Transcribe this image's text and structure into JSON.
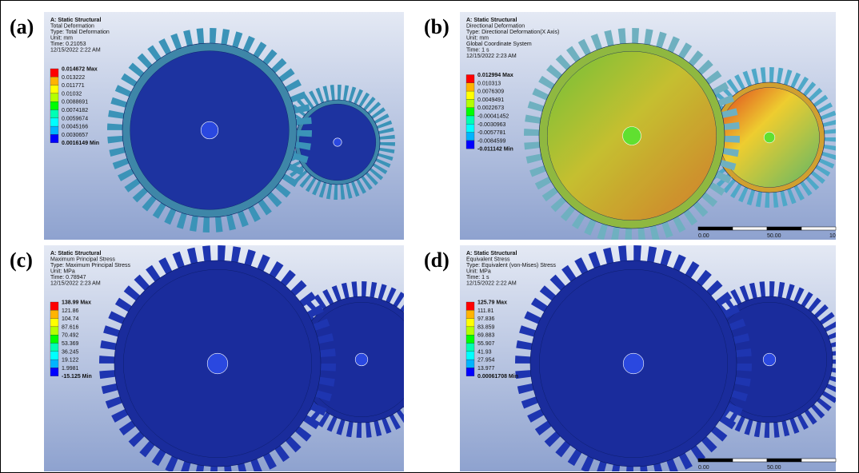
{
  "panels": [
    {
      "label": "(a)",
      "header": [
        "A: Static Structural",
        "Total Deformation",
        "Type: Total Deformation",
        "Unit: mm",
        "Time: 0.21053",
        "12/15/2022 2:22 AM"
      ],
      "legend": [
        "0.014672 Max",
        "0.013222",
        "0.011771",
        "0.01032",
        "0.0088691",
        "0.0074182",
        "0.0059674",
        "0.0045166",
        "0.0030657",
        "0.0016149 Min"
      ]
    },
    {
      "label": "(b)",
      "header": [
        "A: Static Structural",
        "Directional Deformation",
        "Type: Directional Deformation(X Axis)",
        "Unit: mm",
        "Global Coordinate System",
        "Time: 1 s",
        "12/15/2022 2:23 AM"
      ],
      "legend": [
        "0.012994 Max",
        "0.010313",
        "0.0076309",
        "0.0049491",
        "0.0022673",
        "-0.00041452",
        "-0.0030963",
        "-0.0057781",
        "-0.0084599",
        "-0.011142 Min"
      ],
      "scale": [
        "0.00",
        "50.00",
        "10"
      ]
    },
    {
      "label": "(c)",
      "header": [
        "A: Static Structural",
        "Maximum Principal Stress",
        "Type: Maximum Principal Stress",
        "Unit: MPa",
        "Time: 0.78947",
        "12/15/2022 2:23 AM"
      ],
      "legend": [
        "138.99 Max",
        "121.86",
        "104.74",
        "87.616",
        "70.492",
        "53.369",
        "36.245",
        "19.122",
        "1.9981",
        "-15.125 Min"
      ]
    },
    {
      "label": "(d)",
      "header": [
        "A: Static Structural",
        "Equivalent Stress",
        "Type: Equivalent (von-Mises) Stress",
        "Unit: MPa",
        "Time: 1 s",
        "12/15/2022 2:22 AM"
      ],
      "legend": [
        "125.79 Max",
        "111.81",
        "97.836",
        "83.859",
        "69.883",
        "55.907",
        "41.93",
        "27.954",
        "13.977",
        "0.00061708 Min"
      ],
      "scale": [
        "0.00",
        "50.00"
      ]
    }
  ]
}
